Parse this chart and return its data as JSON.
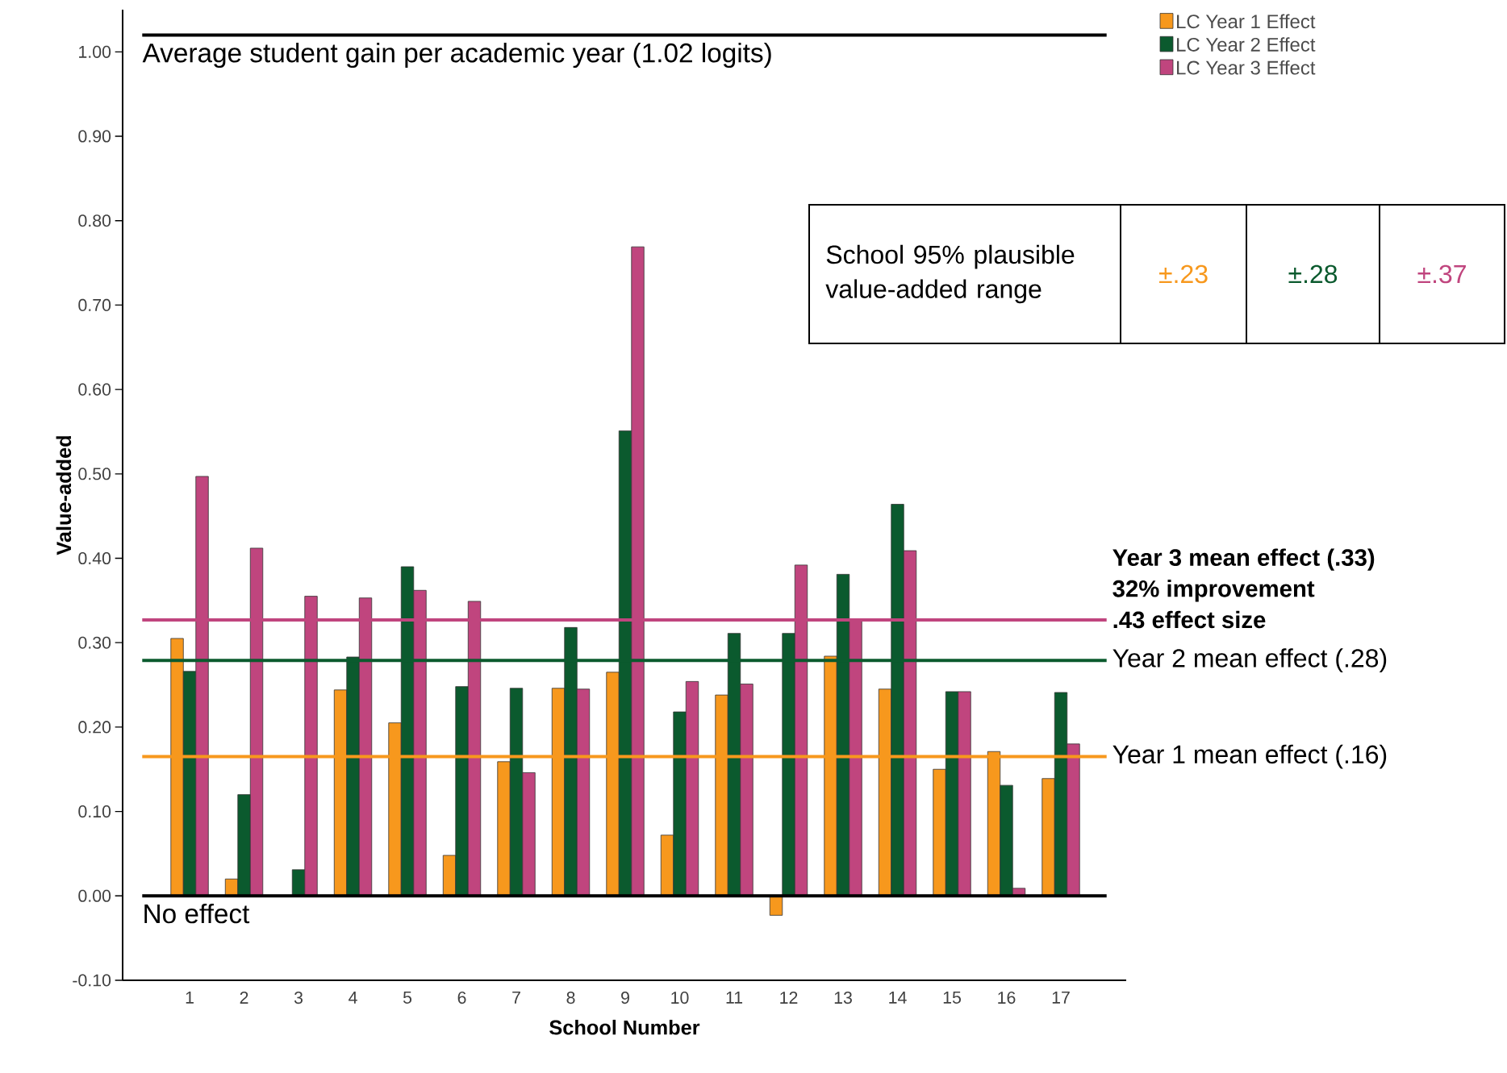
{
  "chart_data": {
    "type": "bar",
    "xlabel": "School Number",
    "ylabel": "Value-added",
    "categories": [
      "1",
      "2",
      "3",
      "4",
      "5",
      "6",
      "7",
      "8",
      "9",
      "10",
      "11",
      "12",
      "13",
      "14",
      "15",
      "16",
      "17"
    ],
    "series": [
      {
        "name": "LC Year 1 Effect",
        "color": "#f7981d",
        "values": [
          0.305,
          0.02,
          null,
          0.244,
          0.205,
          0.048,
          0.159,
          0.246,
          0.265,
          0.072,
          0.238,
          -0.023,
          0.284,
          0.245,
          0.15,
          0.171,
          0.139
        ]
      },
      {
        "name": "LC Year 2 Effect",
        "color": "#0b5a2e",
        "values": [
          0.266,
          0.12,
          0.031,
          0.283,
          0.39,
          0.248,
          0.246,
          0.318,
          0.551,
          0.218,
          0.311,
          0.311,
          0.381,
          0.464,
          0.242,
          0.131,
          0.241
        ]
      },
      {
        "name": "LC Year 3 Effect",
        "color": "#c0457e",
        "values": [
          0.497,
          0.412,
          0.355,
          0.353,
          0.362,
          0.349,
          0.146,
          0.245,
          0.769,
          0.254,
          0.251,
          0.392,
          0.327,
          0.409,
          0.242,
          0.009,
          0.18
        ]
      }
    ],
    "ylim": [
      -0.1,
      1.05
    ],
    "yticks": [
      {
        "value": -0.1,
        "label": "-0.10"
      },
      {
        "value": 0,
        "label": "0.00"
      },
      {
        "value": 0.1,
        "label": "0.10"
      },
      {
        "value": 0.2,
        "label": "0.20"
      },
      {
        "value": 0.3,
        "label": "0.30"
      },
      {
        "value": 0.4,
        "label": "0.40"
      },
      {
        "value": 0.5,
        "label": "0.50"
      },
      {
        "value": 0.6,
        "label": "0.60"
      },
      {
        "value": 0.7,
        "label": "0.70"
      },
      {
        "value": 0.8,
        "label": "0.80"
      },
      {
        "value": 0.9,
        "label": "0.90"
      },
      {
        "value": 1.0,
        "label": "1.00"
      }
    ],
    "ref_lines": [
      {
        "axis": "y",
        "value": 1.02,
        "label": "Average student gain per academic year (1.02 logits)",
        "color": "#000000"
      },
      {
        "axis": "y",
        "value": 0,
        "label": "No effect",
        "color": "#000000"
      },
      {
        "axis": "y",
        "value": 0.327,
        "label": "**Year 3 mean effect (.33)**",
        "color": "#c0457e"
      },
      {
        "axis": "y",
        "value": 0.279,
        "label": "Year 2 mean effect (.28)",
        "color": "#0b5a2e"
      },
      {
        "axis": "y",
        "value": 0.165,
        "label": "Year 1 mean effect (.16)",
        "color": "#f7981d"
      }
    ],
    "annotations": [
      "School 95% plausible value-added range",
      "±.23",
      "±.28",
      "±.37",
      "**32% improvement**",
      "**.43 effect size**"
    ],
    "legend": "top right"
  }
}
